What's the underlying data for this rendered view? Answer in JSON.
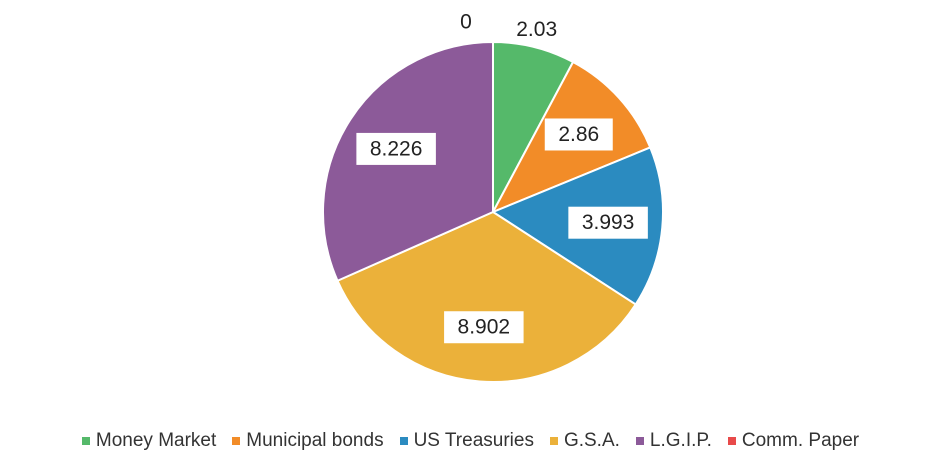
{
  "chart_data": {
    "type": "pie",
    "categories": [
      "Money Market",
      "Municipal bonds",
      "US Treasuries",
      "G.S.A.",
      "L.G.I.P.",
      "Comm. Paper"
    ],
    "values": [
      2.03,
      2.86,
      3.993,
      8.902,
      8.226,
      0
    ],
    "labels": [
      "2.03",
      "2.86",
      "3.993",
      "8.902",
      "8.226",
      "0"
    ],
    "colors": [
      "#55b96a",
      "#f28c28",
      "#2b8bc0",
      "#ebb13a",
      "#8c5a99",
      "#e84a4a"
    ],
    "legend": "bottom",
    "title": ""
  }
}
